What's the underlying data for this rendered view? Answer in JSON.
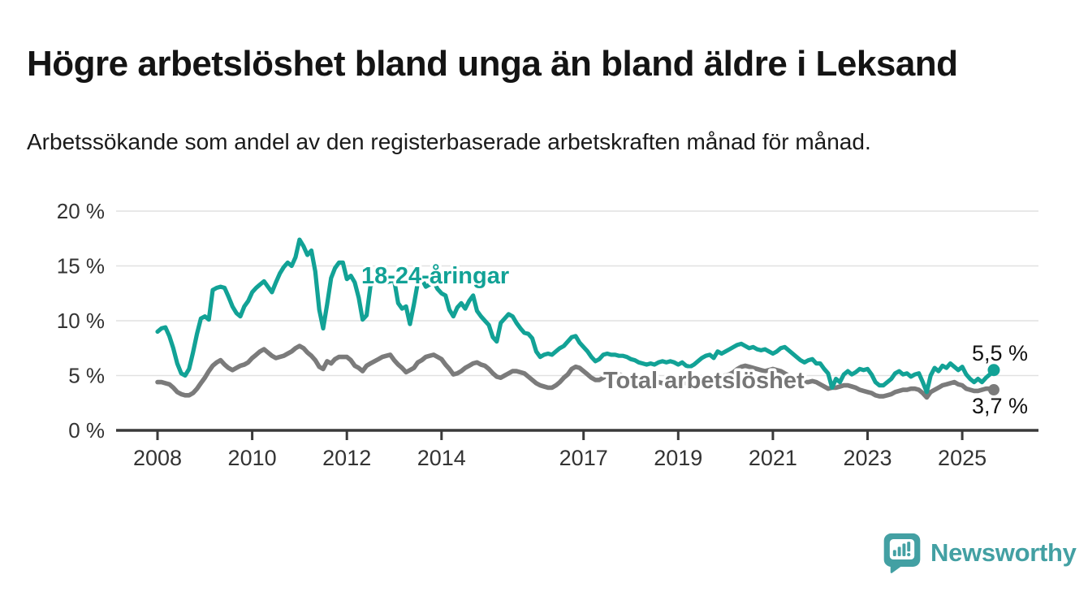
{
  "chart_data": {
    "type": "line",
    "title": "Högre arbetslöshet bland unga än bland äldre i Leksand",
    "subtitle": "Arbetssökande som andel av den registerbaserade arbetskraften månad för månad.",
    "unit": "%",
    "x_start": "2008-01",
    "x_end": "2025-09",
    "x_interval": "monthly",
    "ylim": [
      0,
      20
    ],
    "grid": true,
    "legend_position": "inline-labels",
    "y_ticks": [
      {
        "value": 20,
        "label": "20 %"
      },
      {
        "value": 15,
        "label": "15 %"
      },
      {
        "value": 10,
        "label": "10 %"
      },
      {
        "value": 5,
        "label": "5 %"
      },
      {
        "value": 0,
        "label": "0 %"
      }
    ],
    "x_ticks": [
      {
        "year": 2008,
        "label": "2008"
      },
      {
        "year": 2010,
        "label": "2010"
      },
      {
        "year": 2012,
        "label": "2012"
      },
      {
        "year": 2014,
        "label": "2014"
      },
      {
        "year": 2017,
        "label": "2017"
      },
      {
        "year": 2019,
        "label": "2019"
      },
      {
        "year": 2021,
        "label": "2021"
      },
      {
        "year": 2023,
        "label": "2023"
      },
      {
        "year": 2025,
        "label": "2025"
      }
    ],
    "series": [
      {
        "name": "18-24-åringar",
        "color": "#12a296",
        "end_label": "5,5 %",
        "last_value": 5.5,
        "values": [
          9.0,
          9.3,
          9.4,
          8.6,
          7.5,
          6.1,
          5.2,
          5.0,
          5.6,
          7.1,
          8.8,
          10.2,
          10.4,
          10.1,
          12.8,
          13.0,
          13.1,
          13.0,
          12.2,
          11.3,
          10.7,
          10.4,
          11.3,
          11.8,
          12.6,
          13.0,
          13.3,
          13.6,
          13.1,
          12.6,
          13.5,
          14.3,
          14.9,
          15.3,
          15.0,
          15.8,
          17.4,
          16.8,
          16.0,
          16.4,
          14.5,
          11.0,
          9.3,
          11.5,
          13.9,
          14.8,
          15.3,
          15.3,
          13.8,
          14.1,
          13.5,
          12.1,
          10.1,
          10.5,
          13.2,
          13.5,
          13.4,
          13.4,
          13.5,
          13.6,
          13.7,
          11.6,
          11.1,
          11.3,
          9.7,
          11.5,
          13.5,
          13.8,
          13.1,
          13.3,
          13.6,
          12.9,
          12.5,
          12.3,
          11.0,
          10.4,
          11.2,
          11.6,
          11.1,
          11.8,
          12.3,
          10.9,
          10.4,
          10.0,
          9.6,
          8.5,
          8.1,
          9.8,
          10.2,
          10.6,
          10.4,
          9.8,
          9.3,
          8.9,
          8.8,
          8.4,
          7.2,
          6.7,
          6.9,
          7.0,
          6.9,
          7.2,
          7.5,
          7.7,
          8.1,
          8.5,
          8.6,
          8.0,
          7.6,
          7.2,
          6.7,
          6.3,
          6.5,
          6.9,
          7.0,
          6.9,
          6.9,
          6.8,
          6.8,
          6.7,
          6.5,
          6.4,
          6.2,
          6.1,
          6.0,
          6.1,
          6.0,
          6.2,
          6.3,
          6.2,
          6.3,
          6.2,
          6.0,
          6.2,
          5.9,
          5.8,
          6.0,
          6.3,
          6.6,
          6.8,
          6.9,
          6.6,
          7.2,
          7.0,
          7.2,
          7.4,
          7.6,
          7.8,
          7.9,
          7.7,
          7.5,
          7.6,
          7.4,
          7.3,
          7.4,
          7.2,
          7.0,
          7.2,
          7.5,
          7.6,
          7.3,
          7.0,
          6.7,
          6.4,
          6.2,
          6.4,
          6.5,
          6.1,
          6.1,
          5.6,
          5.2,
          3.9,
          4.7,
          4.4,
          5.1,
          5.4,
          5.1,
          5.3,
          5.6,
          5.5,
          5.6,
          5.1,
          4.4,
          4.1,
          4.1,
          4.4,
          4.7,
          5.2,
          5.4,
          5.1,
          5.2,
          4.9,
          5.1,
          5.2,
          4.4,
          3.5,
          5.0,
          5.7,
          5.4,
          5.9,
          5.7,
          6.1,
          5.8,
          5.5,
          5.8,
          5.1,
          4.7,
          4.4,
          4.7,
          4.4,
          4.8,
          5.1,
          5.5
        ]
      },
      {
        "name": "Total arbetslöshet",
        "color": "#7b7b7b",
        "end_label": "3,7 %",
        "last_value": 3.7,
        "values": [
          4.4,
          4.4,
          4.3,
          4.2,
          3.9,
          3.5,
          3.3,
          3.2,
          3.2,
          3.4,
          3.8,
          4.3,
          4.8,
          5.4,
          5.9,
          6.2,
          6.4,
          6.0,
          5.7,
          5.5,
          5.7,
          5.9,
          6.0,
          6.2,
          6.6,
          6.9,
          7.2,
          7.4,
          7.1,
          6.8,
          6.6,
          6.7,
          6.8,
          7.0,
          7.2,
          7.5,
          7.7,
          7.5,
          7.1,
          6.8,
          6.4,
          5.8,
          5.6,
          6.3,
          6.1,
          6.5,
          6.7,
          6.7,
          6.7,
          6.4,
          5.9,
          5.7,
          5.4,
          5.9,
          6.1,
          6.3,
          6.5,
          6.7,
          6.8,
          6.9,
          6.4,
          6.0,
          5.7,
          5.3,
          5.5,
          5.7,
          6.2,
          6.4,
          6.7,
          6.8,
          6.9,
          6.7,
          6.5,
          6.0,
          5.6,
          5.1,
          5.2,
          5.4,
          5.7,
          5.9,
          6.1,
          6.2,
          6.0,
          5.9,
          5.6,
          5.2,
          4.9,
          4.8,
          5.0,
          5.2,
          5.4,
          5.4,
          5.3,
          5.2,
          4.9,
          4.6,
          4.3,
          4.1,
          4.0,
          3.9,
          3.9,
          4.1,
          4.4,
          4.8,
          5.1,
          5.6,
          5.8,
          5.7,
          5.4,
          5.1,
          4.8,
          4.6,
          4.6,
          4.8,
          5.0,
          5.1,
          5.0,
          5.1,
          5.0,
          4.9,
          4.7,
          4.6,
          4.5,
          4.4,
          4.3,
          4.4,
          4.3,
          4.4,
          4.3,
          4.2,
          4.3,
          4.2,
          4.3,
          4.4,
          4.3,
          4.2,
          4.3,
          4.5,
          4.6,
          4.7,
          4.6,
          4.7,
          4.8,
          4.9,
          5.0,
          5.1,
          5.3,
          5.6,
          5.8,
          5.9,
          5.8,
          5.7,
          5.6,
          5.5,
          5.4,
          5.5,
          5.6,
          5.5,
          5.4,
          5.2,
          5.0,
          4.8,
          4.6,
          4.5,
          4.4,
          4.4,
          4.5,
          4.4,
          4.2,
          4.0,
          3.8,
          3.9,
          3.9,
          4.0,
          4.1,
          4.1,
          4.0,
          3.9,
          3.7,
          3.6,
          3.5,
          3.4,
          3.2,
          3.1,
          3.1,
          3.2,
          3.3,
          3.5,
          3.6,
          3.7,
          3.7,
          3.8,
          3.8,
          3.7,
          3.4,
          3.0,
          3.5,
          3.7,
          3.9,
          4.1,
          4.2,
          4.3,
          4.4,
          4.2,
          4.1,
          3.8,
          3.7,
          3.6,
          3.6,
          3.7,
          3.8,
          3.8,
          3.7
        ]
      }
    ]
  },
  "branding": {
    "name": "Newsworthy",
    "color": "#43a0a3"
  }
}
